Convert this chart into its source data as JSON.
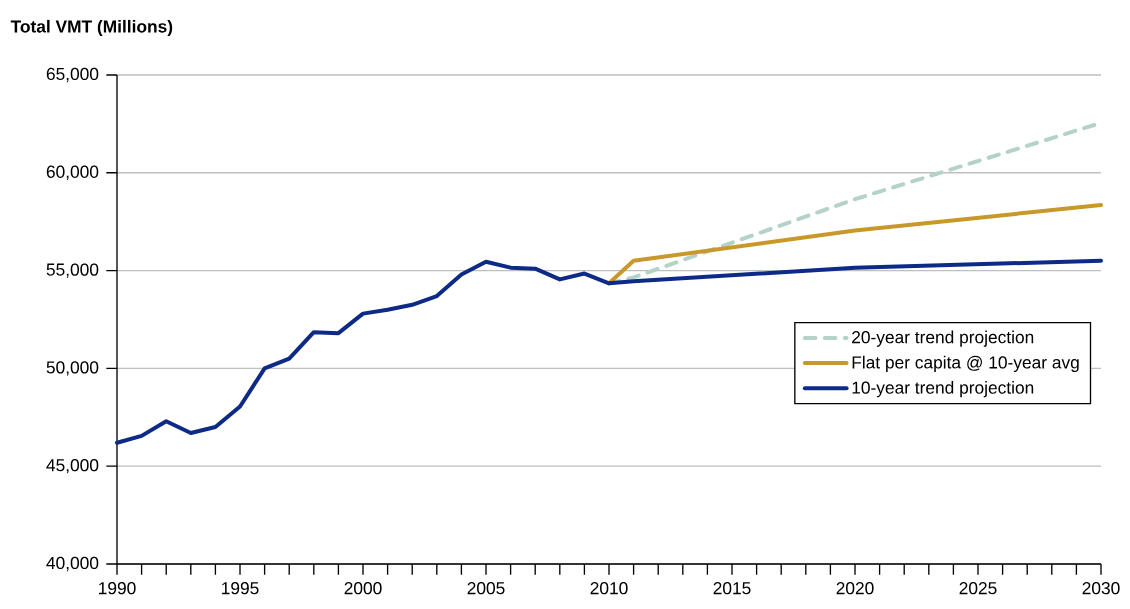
{
  "chart_data": {
    "type": "line",
    "ylabel": "Total VMT (Millions)",
    "xlim": [
      1990,
      2030
    ],
    "ylim": [
      40000,
      65000
    ],
    "xticks": [
      1990,
      {
        "value": 1991,
        "label": null
      },
      {
        "value": 1992,
        "label": null
      },
      {
        "value": 1993,
        "label": null
      },
      {
        "value": 1994,
        "label": null
      },
      1995,
      {
        "value": 1996,
        "label": null
      },
      {
        "value": 1997,
        "label": null
      },
      {
        "value": 1998,
        "label": null
      },
      {
        "value": 1999,
        "label": null
      },
      2000,
      {
        "value": 2001,
        "label": null
      },
      {
        "value": 2002,
        "label": null
      },
      {
        "value": 2003,
        "label": null
      },
      {
        "value": 2004,
        "label": null
      },
      2005,
      {
        "value": 2006,
        "label": null
      },
      {
        "value": 2007,
        "label": null
      },
      {
        "value": 2008,
        "label": null
      },
      {
        "value": 2009,
        "label": null
      },
      2010,
      {
        "value": 2011,
        "label": null
      },
      {
        "value": 2012,
        "label": null
      },
      {
        "value": 2013,
        "label": null
      },
      {
        "value": 2014,
        "label": null
      },
      2015,
      {
        "value": 2016,
        "label": null
      },
      {
        "value": 2017,
        "label": null
      },
      {
        "value": 2018,
        "label": null
      },
      {
        "value": 2019,
        "label": null
      },
      2020,
      {
        "value": 2021,
        "label": null
      },
      {
        "value": 2022,
        "label": null
      },
      {
        "value": 2023,
        "label": null
      },
      {
        "value": 2024,
        "label": null
      },
      2025,
      {
        "value": 2026,
        "label": null
      },
      {
        "value": 2027,
        "label": null
      },
      {
        "value": 2028,
        "label": null
      },
      {
        "value": 2029,
        "label": null
      },
      2030
    ],
    "yticks": [
      {
        "value": 40000,
        "label": "40,000"
      },
      {
        "value": 45000,
        "label": "45,000"
      },
      {
        "value": 50000,
        "label": "50,000"
      },
      {
        "value": 55000,
        "label": "55,000"
      },
      {
        "value": 60000,
        "label": "60,000"
      },
      {
        "value": 65000,
        "label": "65,000"
      }
    ],
    "grid": "y",
    "legend": "right",
    "marker": "none",
    "series": [
      {
        "name": "20-year trend projection",
        "color": "#b4d3c6",
        "line_style": "dashed",
        "x": [
          2010,
          2011,
          2020,
          2030
        ],
        "values": [
          54350,
          54650,
          58650,
          62550
        ]
      },
      {
        "name": "Flat per capita @ 10-year avg",
        "color": "#c8982a",
        "line_style": "solid",
        "x": [
          2010,
          2011,
          2020,
          2030
        ],
        "values": [
          54350,
          55500,
          57050,
          58350
        ]
      },
      {
        "name": "10-year trend projection",
        "color": "#0d2a87",
        "line_style": "solid",
        "x": [
          1990,
          1991,
          1992,
          1993,
          1994,
          1995,
          1996,
          1997,
          1998,
          1999,
          2000,
          2001,
          2002,
          2003,
          2004,
          2005,
          2006,
          2007,
          2008,
          2009,
          2010,
          2011,
          2020,
          2030
        ],
        "values": [
          46200,
          46550,
          47300,
          46700,
          47000,
          48050,
          50000,
          50500,
          51850,
          51800,
          52800,
          53000,
          53250,
          53700,
          54800,
          55450,
          55150,
          55100,
          54550,
          54850,
          54350,
          54450,
          55150,
          55500
        ]
      }
    ]
  }
}
